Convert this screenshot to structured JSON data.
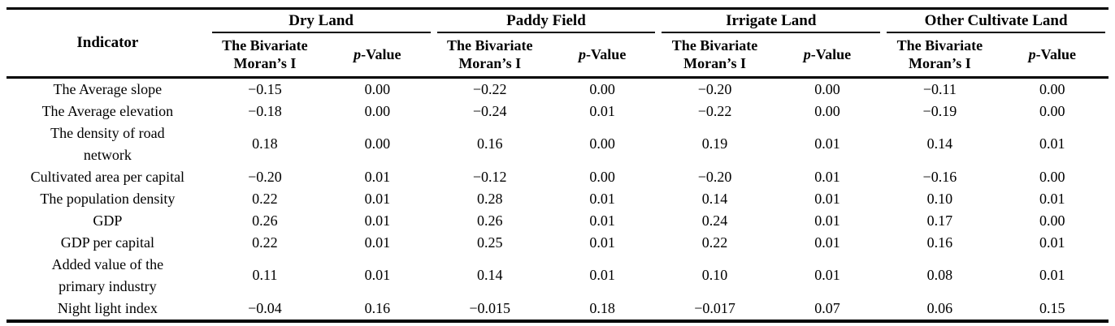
{
  "table": {
    "indicator_header": "Indicator",
    "groups": [
      {
        "label": "Dry Land"
      },
      {
        "label": "Paddy Field"
      },
      {
        "label": "Irrigate Land"
      },
      {
        "label": "Other Cultivate Land"
      }
    ],
    "moran_header": "The Bivariate Moran’s I",
    "p_header": {
      "italic": "p",
      "rest": "-Value"
    },
    "rows": [
      {
        "indicator": "The Average slope",
        "values": [
          "−0.15",
          "0.00",
          "−0.22",
          "0.00",
          "−0.20",
          "0.00",
          "−0.11",
          "0.00"
        ]
      },
      {
        "indicator": "The Average elevation",
        "values": [
          "−0.18",
          "0.00",
          "−0.24",
          "0.01",
          "−0.22",
          "0.00",
          "−0.19",
          "0.00"
        ]
      },
      {
        "indicator": "The density of road\nnetwork",
        "values": [
          "0.18",
          "0.00",
          "0.16",
          "0.00",
          "0.19",
          "0.01",
          "0.14",
          "0.01"
        ]
      },
      {
        "indicator": "Cultivated area per capital",
        "values": [
          "−0.20",
          "0.01",
          "−0.12",
          "0.00",
          "−0.20",
          "0.01",
          "−0.16",
          "0.00"
        ]
      },
      {
        "indicator": "The population density",
        "values": [
          "0.22",
          "0.01",
          "0.28",
          "0.01",
          "0.14",
          "0.01",
          "0.10",
          "0.01"
        ]
      },
      {
        "indicator": "GDP",
        "values": [
          "0.26",
          "0.01",
          "0.26",
          "0.01",
          "0.24",
          "0.01",
          "0.17",
          "0.00"
        ]
      },
      {
        "indicator": "GDP per capital",
        "values": [
          "0.22",
          "0.01",
          "0.25",
          "0.01",
          "0.22",
          "0.01",
          "0.16",
          "0.01"
        ]
      },
      {
        "indicator": "Added value of the\nprimary industry",
        "values": [
          "0.11",
          "0.01",
          "0.14",
          "0.01",
          "0.10",
          "0.01",
          "0.08",
          "0.01"
        ]
      },
      {
        "indicator": "Night light index",
        "values": [
          "−0.04",
          "0.16",
          "−0.015",
          "0.18",
          "−0.017",
          "0.07",
          "0.06",
          "0.15"
        ]
      }
    ]
  }
}
